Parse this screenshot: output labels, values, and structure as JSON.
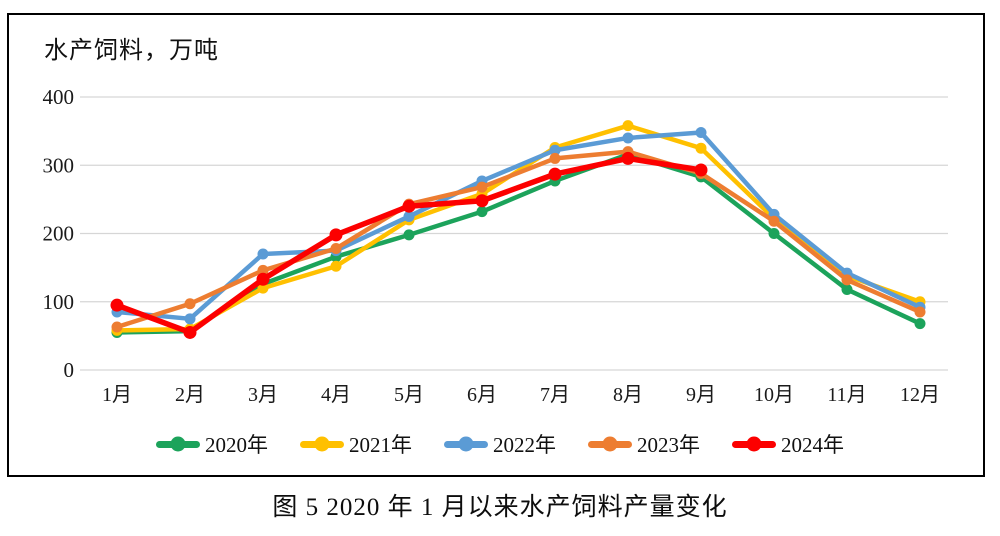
{
  "figure": {
    "title": "水产饲料，万吨",
    "caption": "图 5 2020 年 1 月以来水产饲料产量变化"
  },
  "chart_data": {
    "type": "line",
    "title": "水产饲料，万吨",
    "unit": "万吨",
    "categories": [
      "1月",
      "2月",
      "3月",
      "4月",
      "5月",
      "6月",
      "7月",
      "8月",
      "9月",
      "10月",
      "11月",
      "12月"
    ],
    "ylim": [
      0,
      400
    ],
    "yticks": [
      400,
      300,
      200,
      100,
      0
    ],
    "grid": "horizontal",
    "legend_position": "bottom",
    "series": [
      {
        "name": "2020年",
        "color": "#1CA35B",
        "values": [
          55,
          57,
          126,
          166,
          198,
          232,
          277,
          316,
          283,
          200,
          118,
          68
        ]
      },
      {
        "name": "2021年",
        "color": "#FFC000",
        "values": [
          58,
          60,
          120,
          152,
          220,
          258,
          326,
          358,
          325,
          222,
          138,
          100
        ]
      },
      {
        "name": "2022年",
        "color": "#5B9BD5",
        "values": [
          85,
          75,
          170,
          175,
          225,
          277,
          322,
          340,
          348,
          228,
          142,
          92
        ]
      },
      {
        "name": "2023年",
        "color": "#ED7D31",
        "values": [
          63,
          97,
          146,
          178,
          243,
          268,
          310,
          320,
          288,
          218,
          132,
          85
        ]
      },
      {
        "name": "2024年",
        "color": "#FC0000",
        "values": [
          95,
          55,
          133,
          198,
          240,
          248,
          287,
          310,
          293,
          null,
          null,
          null
        ]
      }
    ]
  }
}
